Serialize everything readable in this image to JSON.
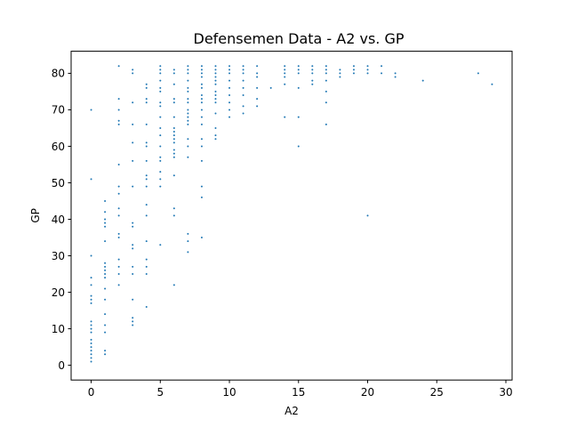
{
  "chart_data": {
    "type": "scatter",
    "title": "Defensemen Data - A2 vs. GP",
    "xlabel": "A2",
    "ylabel": "GP",
    "xlim": [
      -1.45,
      30.45
    ],
    "ylim": [
      -4.05,
      86.05
    ],
    "xticks": [
      0,
      5,
      10,
      15,
      20,
      25,
      30
    ],
    "yticks": [
      0,
      10,
      20,
      30,
      40,
      50,
      60,
      70,
      80
    ],
    "grid": false,
    "color": "#1f77b4",
    "points": [
      [
        0,
        1
      ],
      [
        0,
        2
      ],
      [
        0,
        3
      ],
      [
        0,
        4
      ],
      [
        0,
        5
      ],
      [
        0,
        6
      ],
      [
        0,
        7
      ],
      [
        0,
        9
      ],
      [
        0,
        10
      ],
      [
        0,
        11
      ],
      [
        0,
        12
      ],
      [
        0,
        17
      ],
      [
        0,
        18
      ],
      [
        0,
        19
      ],
      [
        0,
        22
      ],
      [
        0,
        24
      ],
      [
        0,
        30
      ],
      [
        0,
        51
      ],
      [
        0,
        70
      ],
      [
        1,
        3
      ],
      [
        1,
        4
      ],
      [
        1,
        9
      ],
      [
        1,
        11
      ],
      [
        1,
        14
      ],
      [
        1,
        18
      ],
      [
        1,
        21
      ],
      [
        1,
        24
      ],
      [
        1,
        25
      ],
      [
        1,
        26
      ],
      [
        1,
        27
      ],
      [
        1,
        28
      ],
      [
        1,
        34
      ],
      [
        1,
        38
      ],
      [
        1,
        39
      ],
      [
        1,
        40
      ],
      [
        1,
        42
      ],
      [
        1,
        45
      ],
      [
        2,
        22
      ],
      [
        2,
        25
      ],
      [
        2,
        27
      ],
      [
        2,
        29
      ],
      [
        2,
        35
      ],
      [
        2,
        36
      ],
      [
        2,
        41
      ],
      [
        2,
        43
      ],
      [
        2,
        47
      ],
      [
        2,
        49
      ],
      [
        2,
        55
      ],
      [
        2,
        66
      ],
      [
        2,
        67
      ],
      [
        2,
        70
      ],
      [
        2,
        73
      ],
      [
        2,
        82
      ],
      [
        3,
        11
      ],
      [
        3,
        12
      ],
      [
        3,
        13
      ],
      [
        3,
        18
      ],
      [
        3,
        25
      ],
      [
        3,
        27
      ],
      [
        3,
        32
      ],
      [
        3,
        33
      ],
      [
        3,
        38
      ],
      [
        3,
        39
      ],
      [
        3,
        49
      ],
      [
        3,
        56
      ],
      [
        3,
        61
      ],
      [
        3,
        66
      ],
      [
        3,
        72
      ],
      [
        3,
        80
      ],
      [
        3,
        81
      ],
      [
        4,
        16
      ],
      [
        4,
        25
      ],
      [
        4,
        27
      ],
      [
        4,
        29
      ],
      [
        4,
        34
      ],
      [
        4,
        41
      ],
      [
        4,
        44
      ],
      [
        4,
        49
      ],
      [
        4,
        51
      ],
      [
        4,
        52
      ],
      [
        4,
        56
      ],
      [
        4,
        60
      ],
      [
        4,
        61
      ],
      [
        4,
        66
      ],
      [
        4,
        72
      ],
      [
        4,
        73
      ],
      [
        4,
        76
      ],
      [
        4,
        77
      ],
      [
        5,
        33
      ],
      [
        5,
        49
      ],
      [
        5,
        51
      ],
      [
        5,
        53
      ],
      [
        5,
        56
      ],
      [
        5,
        57
      ],
      [
        5,
        60
      ],
      [
        5,
        63
      ],
      [
        5,
        65
      ],
      [
        5,
        68
      ],
      [
        5,
        71
      ],
      [
        5,
        72
      ],
      [
        5,
        75
      ],
      [
        5,
        76
      ],
      [
        5,
        78
      ],
      [
        5,
        80
      ],
      [
        5,
        81
      ],
      [
        5,
        82
      ],
      [
        6,
        22
      ],
      [
        6,
        41
      ],
      [
        6,
        43
      ],
      [
        6,
        52
      ],
      [
        6,
        57
      ],
      [
        6,
        58
      ],
      [
        6,
        59
      ],
      [
        6,
        61
      ],
      [
        6,
        62
      ],
      [
        6,
        63
      ],
      [
        6,
        64
      ],
      [
        6,
        65
      ],
      [
        6,
        68
      ],
      [
        6,
        72
      ],
      [
        6,
        73
      ],
      [
        6,
        77
      ],
      [
        6,
        80
      ],
      [
        6,
        81
      ],
      [
        7,
        31
      ],
      [
        7,
        34
      ],
      [
        7,
        36
      ],
      [
        7,
        57
      ],
      [
        7,
        60
      ],
      [
        7,
        62
      ],
      [
        7,
        66
      ],
      [
        7,
        67
      ],
      [
        7,
        68
      ],
      [
        7,
        69
      ],
      [
        7,
        70
      ],
      [
        7,
        72
      ],
      [
        7,
        73
      ],
      [
        7,
        75
      ],
      [
        7,
        76
      ],
      [
        7,
        78
      ],
      [
        7,
        80
      ],
      [
        7,
        81
      ],
      [
        7,
        82
      ],
      [
        8,
        35
      ],
      [
        8,
        46
      ],
      [
        8,
        49
      ],
      [
        8,
        56
      ],
      [
        8,
        60
      ],
      [
        8,
        62
      ],
      [
        8,
        66
      ],
      [
        8,
        68
      ],
      [
        8,
        70
      ],
      [
        8,
        72
      ],
      [
        8,
        73
      ],
      [
        8,
        74
      ],
      [
        8,
        76
      ],
      [
        8,
        77
      ],
      [
        8,
        79
      ],
      [
        8,
        80
      ],
      [
        8,
        81
      ],
      [
        8,
        82
      ],
      [
        9,
        62
      ],
      [
        9,
        63
      ],
      [
        9,
        65
      ],
      [
        9,
        69
      ],
      [
        9,
        72
      ],
      [
        9,
        73
      ],
      [
        9,
        74
      ],
      [
        9,
        75
      ],
      [
        9,
        77
      ],
      [
        9,
        78
      ],
      [
        9,
        79
      ],
      [
        9,
        80
      ],
      [
        9,
        81
      ],
      [
        9,
        82
      ],
      [
        10,
        68
      ],
      [
        10,
        70
      ],
      [
        10,
        72
      ],
      [
        10,
        74
      ],
      [
        10,
        76
      ],
      [
        10,
        78
      ],
      [
        10,
        80
      ],
      [
        10,
        81
      ],
      [
        10,
        82
      ],
      [
        11,
        69
      ],
      [
        11,
        71
      ],
      [
        11,
        74
      ],
      [
        11,
        76
      ],
      [
        11,
        78
      ],
      [
        11,
        80
      ],
      [
        11,
        81
      ],
      [
        11,
        82
      ],
      [
        12,
        71
      ],
      [
        12,
        73
      ],
      [
        12,
        76
      ],
      [
        12,
        79
      ],
      [
        12,
        80
      ],
      [
        12,
        82
      ],
      [
        13,
        76
      ],
      [
        14,
        68
      ],
      [
        14,
        77
      ],
      [
        14,
        79
      ],
      [
        14,
        80
      ],
      [
        14,
        81
      ],
      [
        14,
        82
      ],
      [
        15,
        60
      ],
      [
        15,
        68
      ],
      [
        15,
        76
      ],
      [
        15,
        80
      ],
      [
        15,
        81
      ],
      [
        15,
        82
      ],
      [
        16,
        77
      ],
      [
        16,
        78
      ],
      [
        16,
        80
      ],
      [
        16,
        81
      ],
      [
        16,
        82
      ],
      [
        17,
        66
      ],
      [
        17,
        72
      ],
      [
        17,
        75
      ],
      [
        17,
        78
      ],
      [
        17,
        80
      ],
      [
        17,
        81
      ],
      [
        17,
        82
      ],
      [
        18,
        79
      ],
      [
        18,
        80
      ],
      [
        18,
        81
      ],
      [
        19,
        80
      ],
      [
        19,
        81
      ],
      [
        19,
        82
      ],
      [
        20,
        41
      ],
      [
        20,
        80
      ],
      [
        20,
        81
      ],
      [
        20,
        82
      ],
      [
        21,
        80
      ],
      [
        21,
        82
      ],
      [
        22,
        79
      ],
      [
        22,
        80
      ],
      [
        24,
        78
      ],
      [
        28,
        80
      ],
      [
        29,
        77
      ]
    ]
  }
}
